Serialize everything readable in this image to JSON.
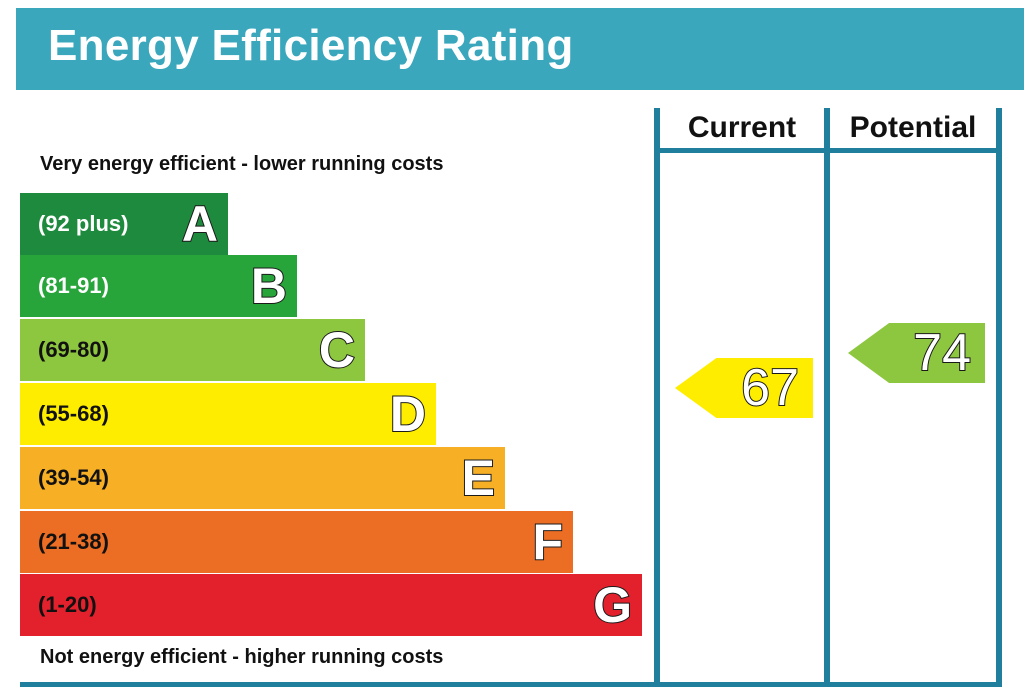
{
  "title": "Energy Efficiency Rating",
  "top_caption": "Very energy efficient - lower running costs",
  "bottom_caption": "Not energy efficient - higher running costs",
  "columns": {
    "current": "Current",
    "potential": "Potential"
  },
  "bands": [
    {
      "letter": "A",
      "range": "(92 plus)",
      "color": "#1e8a3e",
      "text_color": "#ffffff"
    },
    {
      "letter": "B",
      "range": "(81-91)",
      "color": "#27a53b",
      "text_color": "#ffffff"
    },
    {
      "letter": "C",
      "range": "(69-80)",
      "color": "#8dc63f",
      "text_color": "#111111"
    },
    {
      "letter": "D",
      "range": "(55-68)",
      "color": "#ffed00",
      "text_color": "#111111"
    },
    {
      "letter": "E",
      "range": "(39-54)",
      "color": "#f7b026",
      "text_color": "#111111"
    },
    {
      "letter": "F",
      "range": "(21-38)",
      "color": "#ec6d24",
      "text_color": "#111111"
    },
    {
      "letter": "G",
      "range": "(1-20)",
      "color": "#e2212c",
      "text_color": "#111111"
    }
  ],
  "current": {
    "value": "67",
    "band": "D",
    "color": "#ffed00"
  },
  "potential": {
    "value": "74",
    "band": "C",
    "color": "#8dc63f"
  },
  "colors": {
    "title_bar": "#3aa7bd",
    "grid_lines": "#1f7f9c"
  }
}
